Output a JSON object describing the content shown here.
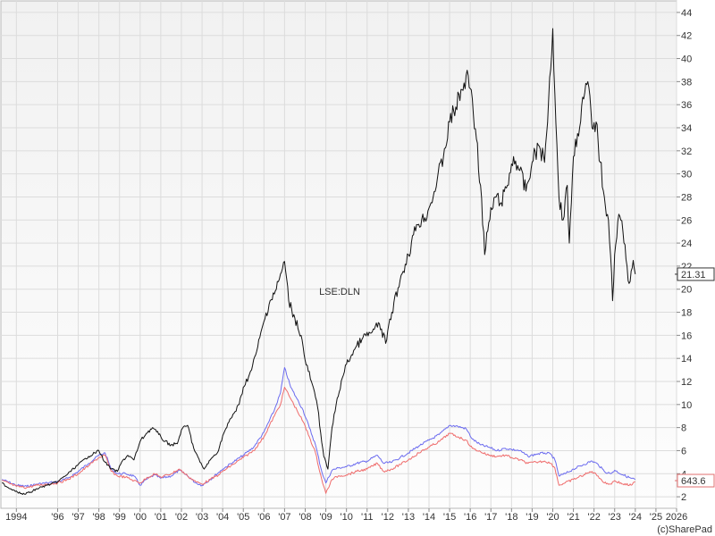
{
  "chart_data": {
    "type": "line",
    "watermark": "LSE:DLN",
    "credit": "(c)SharePad",
    "x_ticks": [
      "1994",
      "'96",
      "'97",
      "'98",
      "'99",
      "'00",
      "'01",
      "'02",
      "'03",
      "'04",
      "'05",
      "'06",
      "'07",
      "'08",
      "'09",
      "'10",
      "'11",
      "'12",
      "'13",
      "'14",
      "'15",
      "'16",
      "'17",
      "'18",
      "'19",
      "'20",
      "'21",
      "'22",
      "'23",
      "'24",
      "'25",
      "2026"
    ],
    "y_ticks": [
      2,
      4,
      6,
      8,
      10,
      12,
      14,
      16,
      18,
      20,
      22,
      24,
      26,
      28,
      30,
      32,
      34,
      36,
      38,
      40,
      42,
      44
    ],
    "xlim": [
      1993.25,
      2026.0
    ],
    "ylim": [
      1.0,
      45.0
    ],
    "grid": true,
    "last_price_label": "21.31",
    "index_label": "643.6",
    "series": [
      {
        "color": "#111111",
        "values": [
          [
            1993.3,
            3.2
          ],
          [
            1993.6,
            2.8
          ],
          [
            1994.0,
            2.5
          ],
          [
            1994.3,
            2.2
          ],
          [
            1994.7,
            2.4
          ],
          [
            1995.0,
            2.7
          ],
          [
            1995.5,
            3.0
          ],
          [
            1996.0,
            3.3
          ],
          [
            1996.5,
            4.0
          ],
          [
            1997.0,
            4.8
          ],
          [
            1997.5,
            5.5
          ],
          [
            1998.0,
            6.0
          ],
          [
            1998.3,
            5.0
          ],
          [
            1998.6,
            4.4
          ],
          [
            1998.9,
            4.2
          ],
          [
            1999.1,
            5.0
          ],
          [
            1999.4,
            5.6
          ],
          [
            1999.7,
            5.2
          ],
          [
            2000.0,
            6.8
          ],
          [
            2000.3,
            7.5
          ],
          [
            2000.6,
            8.0
          ],
          [
            2000.9,
            7.4
          ],
          [
            2001.2,
            6.8
          ],
          [
            2001.5,
            6.5
          ],
          [
            2001.8,
            6.6
          ],
          [
            2002.0,
            7.8
          ],
          [
            2002.3,
            8.2
          ],
          [
            2002.6,
            6.2
          ],
          [
            2002.9,
            5.0
          ],
          [
            2003.1,
            4.4
          ],
          [
            2003.4,
            5.2
          ],
          [
            2003.8,
            6.0
          ],
          [
            2004.0,
            7.3
          ],
          [
            2004.4,
            8.8
          ],
          [
            2004.8,
            10.0
          ],
          [
            2005.0,
            11.5
          ],
          [
            2005.4,
            13.0
          ],
          [
            2005.7,
            15.0
          ],
          [
            2006.0,
            17.2
          ],
          [
            2006.3,
            19.0
          ],
          [
            2006.6,
            20.0
          ],
          [
            2006.9,
            21.8
          ],
          [
            2007.0,
            22.4
          ],
          [
            2007.2,
            19.0
          ],
          [
            2007.5,
            17.5
          ],
          [
            2007.8,
            16.0
          ],
          [
            2008.0,
            13.8
          ],
          [
            2008.3,
            12.0
          ],
          [
            2008.6,
            9.8
          ],
          [
            2008.9,
            5.5
          ],
          [
            2009.1,
            4.4
          ],
          [
            2009.3,
            8.0
          ],
          [
            2009.5,
            10.0
          ],
          [
            2009.8,
            12.3
          ],
          [
            2010.0,
            13.5
          ],
          [
            2010.4,
            14.8
          ],
          [
            2010.8,
            15.8
          ],
          [
            2011.2,
            16.2
          ],
          [
            2011.6,
            17.0
          ],
          [
            2011.9,
            15.3
          ],
          [
            2012.2,
            18.0
          ],
          [
            2012.6,
            20.8
          ],
          [
            2013.0,
            23.0
          ],
          [
            2013.4,
            25.6
          ],
          [
            2013.8,
            26.2
          ],
          [
            2014.1,
            27.5
          ],
          [
            2014.4,
            29.5
          ],
          [
            2014.7,
            31.5
          ],
          [
            2015.0,
            34.5
          ],
          [
            2015.3,
            35.8
          ],
          [
            2015.6,
            37.3
          ],
          [
            2015.9,
            38.5
          ],
          [
            2016.1,
            36.5
          ],
          [
            2016.3,
            33.0
          ],
          [
            2016.5,
            29.0
          ],
          [
            2016.7,
            23.0
          ],
          [
            2016.9,
            25.8
          ],
          [
            2017.2,
            28.0
          ],
          [
            2017.5,
            27.5
          ],
          [
            2017.8,
            29.0
          ],
          [
            2018.1,
            31.5
          ],
          [
            2018.4,
            30.3
          ],
          [
            2018.7,
            28.5
          ],
          [
            2019.0,
            31.0
          ],
          [
            2019.3,
            32.5
          ],
          [
            2019.6,
            31.0
          ],
          [
            2019.8,
            36.5
          ],
          [
            2020.0,
            42.6
          ],
          [
            2020.1,
            37.0
          ],
          [
            2020.3,
            28.0
          ],
          [
            2020.5,
            26.0
          ],
          [
            2020.7,
            29.0
          ],
          [
            2020.8,
            24.0
          ],
          [
            2021.0,
            31.5
          ],
          [
            2021.2,
            33.5
          ],
          [
            2021.5,
            36.5
          ],
          [
            2021.7,
            38.0
          ],
          [
            2021.9,
            34.0
          ],
          [
            2022.1,
            34.5
          ],
          [
            2022.3,
            31.0
          ],
          [
            2022.5,
            28.0
          ],
          [
            2022.7,
            26.0
          ],
          [
            2022.8,
            23.0
          ],
          [
            2022.9,
            19.0
          ],
          [
            2023.0,
            23.0
          ],
          [
            2023.2,
            26.5
          ],
          [
            2023.4,
            25.0
          ],
          [
            2023.6,
            22.0
          ],
          [
            2023.7,
            20.5
          ],
          [
            2023.9,
            22.5
          ],
          [
            2024.0,
            21.3
          ]
        ]
      },
      {
        "color": "#6b6bef",
        "values": [
          [
            1993.3,
            3.5
          ],
          [
            1994.0,
            3.0
          ],
          [
            1994.5,
            2.9
          ],
          [
            1995.0,
            3.1
          ],
          [
            1995.5,
            3.2
          ],
          [
            1996.0,
            3.3
          ],
          [
            1996.5,
            3.6
          ],
          [
            1997.0,
            4.2
          ],
          [
            1997.5,
            4.9
          ],
          [
            1998.0,
            5.6
          ],
          [
            1998.3,
            5.8
          ],
          [
            1998.6,
            4.4
          ],
          [
            1998.9,
            4.0
          ],
          [
            1999.3,
            4.0
          ],
          [
            1999.7,
            3.8
          ],
          [
            2000.0,
            3.0
          ],
          [
            2000.3,
            3.5
          ],
          [
            2000.7,
            3.9
          ],
          [
            2001.0,
            3.6
          ],
          [
            2001.5,
            3.8
          ],
          [
            2001.9,
            4.3
          ],
          [
            2002.3,
            3.8
          ],
          [
            2002.7,
            3.2
          ],
          [
            2003.0,
            3.0
          ],
          [
            2003.4,
            3.5
          ],
          [
            2003.8,
            4.1
          ],
          [
            2004.0,
            4.4
          ],
          [
            2004.5,
            5.0
          ],
          [
            2005.0,
            5.6
          ],
          [
            2005.5,
            6.3
          ],
          [
            2006.0,
            7.6
          ],
          [
            2006.5,
            9.5
          ],
          [
            2006.8,
            11.0
          ],
          [
            2007.0,
            13.2
          ],
          [
            2007.3,
            11.5
          ],
          [
            2007.6,
            10.5
          ],
          [
            2007.9,
            9.5
          ],
          [
            2008.2,
            8.0
          ],
          [
            2008.5,
            6.5
          ],
          [
            2008.8,
            4.2
          ],
          [
            2009.0,
            3.2
          ],
          [
            2009.3,
            4.3
          ],
          [
            2009.6,
            4.5
          ],
          [
            2010.0,
            4.6
          ],
          [
            2010.5,
            4.9
          ],
          [
            2011.0,
            5.1
          ],
          [
            2011.5,
            5.6
          ],
          [
            2011.8,
            4.9
          ],
          [
            2012.2,
            5.0
          ],
          [
            2012.6,
            5.4
          ],
          [
            2013.0,
            5.8
          ],
          [
            2013.5,
            6.4
          ],
          [
            2014.0,
            6.9
          ],
          [
            2014.5,
            7.4
          ],
          [
            2015.0,
            8.2
          ],
          [
            2015.4,
            8.1
          ],
          [
            2015.8,
            7.9
          ],
          [
            2016.1,
            7.0
          ],
          [
            2016.5,
            6.5
          ],
          [
            2016.9,
            6.3
          ],
          [
            2017.3,
            6.0
          ],
          [
            2017.7,
            6.2
          ],
          [
            2018.0,
            6.1
          ],
          [
            2018.4,
            6.0
          ],
          [
            2018.8,
            5.5
          ],
          [
            2019.2,
            5.7
          ],
          [
            2019.6,
            5.8
          ],
          [
            2019.9,
            5.7
          ],
          [
            2020.1,
            5.2
          ],
          [
            2020.3,
            3.8
          ],
          [
            2020.6,
            4.0
          ],
          [
            2021.0,
            4.4
          ],
          [
            2021.5,
            4.8
          ],
          [
            2021.9,
            5.1
          ],
          [
            2022.2,
            4.8
          ],
          [
            2022.5,
            4.2
          ],
          [
            2022.8,
            4.0
          ],
          [
            2023.0,
            4.3
          ],
          [
            2023.4,
            3.9
          ],
          [
            2023.8,
            3.6
          ],
          [
            2024.0,
            3.5
          ]
        ]
      },
      {
        "color": "#ef6b6b",
        "values": [
          [
            1993.3,
            3.4
          ],
          [
            1994.0,
            2.9
          ],
          [
            1994.5,
            2.8
          ],
          [
            1995.0,
            3.0
          ],
          [
            1995.5,
            3.1
          ],
          [
            1996.0,
            3.2
          ],
          [
            1996.5,
            3.5
          ],
          [
            1997.0,
            4.0
          ],
          [
            1997.5,
            4.7
          ],
          [
            1998.0,
            5.4
          ],
          [
            1998.3,
            5.6
          ],
          [
            1998.6,
            4.2
          ],
          [
            1998.9,
            3.8
          ],
          [
            1999.3,
            3.7
          ],
          [
            1999.7,
            3.4
          ],
          [
            2000.0,
            3.2
          ],
          [
            2000.3,
            3.6
          ],
          [
            2000.7,
            4.0
          ],
          [
            2001.0,
            3.7
          ],
          [
            2001.5,
            4.0
          ],
          [
            2001.9,
            4.4
          ],
          [
            2002.3,
            3.8
          ],
          [
            2002.7,
            3.3
          ],
          [
            2003.0,
            3.1
          ],
          [
            2003.4,
            3.5
          ],
          [
            2003.8,
            3.9
          ],
          [
            2004.0,
            4.2
          ],
          [
            2004.5,
            4.8
          ],
          [
            2005.0,
            5.4
          ],
          [
            2005.5,
            6.0
          ],
          [
            2006.0,
            7.2
          ],
          [
            2006.5,
            9.0
          ],
          [
            2006.8,
            10.0
          ],
          [
            2007.0,
            11.5
          ],
          [
            2007.3,
            10.5
          ],
          [
            2007.6,
            9.5
          ],
          [
            2007.9,
            8.5
          ],
          [
            2008.2,
            7.2
          ],
          [
            2008.5,
            5.8
          ],
          [
            2008.8,
            3.5
          ],
          [
            2009.0,
            2.3
          ],
          [
            2009.3,
            3.5
          ],
          [
            2009.6,
            3.8
          ],
          [
            2010.0,
            3.9
          ],
          [
            2010.5,
            4.2
          ],
          [
            2011.0,
            4.4
          ],
          [
            2011.5,
            4.9
          ],
          [
            2011.8,
            4.2
          ],
          [
            2012.2,
            4.4
          ],
          [
            2012.6,
            4.8
          ],
          [
            2013.0,
            5.2
          ],
          [
            2013.5,
            5.8
          ],
          [
            2014.0,
            6.3
          ],
          [
            2014.5,
            6.8
          ],
          [
            2015.0,
            7.5
          ],
          [
            2015.4,
            7.2
          ],
          [
            2015.8,
            6.9
          ],
          [
            2016.1,
            6.2
          ],
          [
            2016.5,
            5.9
          ],
          [
            2016.9,
            5.6
          ],
          [
            2017.3,
            5.5
          ],
          [
            2017.7,
            5.6
          ],
          [
            2018.0,
            5.4
          ],
          [
            2018.4,
            5.2
          ],
          [
            2018.8,
            4.9
          ],
          [
            2019.2,
            5.0
          ],
          [
            2019.6,
            5.1
          ],
          [
            2019.9,
            4.9
          ],
          [
            2020.1,
            4.5
          ],
          [
            2020.3,
            3.0
          ],
          [
            2020.6,
            3.2
          ],
          [
            2021.0,
            3.5
          ],
          [
            2021.5,
            3.9
          ],
          [
            2021.9,
            4.2
          ],
          [
            2022.2,
            3.8
          ],
          [
            2022.5,
            3.2
          ],
          [
            2022.8,
            3.1
          ],
          [
            2023.0,
            3.4
          ],
          [
            2023.4,
            3.1
          ],
          [
            2023.8,
            3.0
          ],
          [
            2024.0,
            3.3
          ]
        ]
      }
    ]
  }
}
